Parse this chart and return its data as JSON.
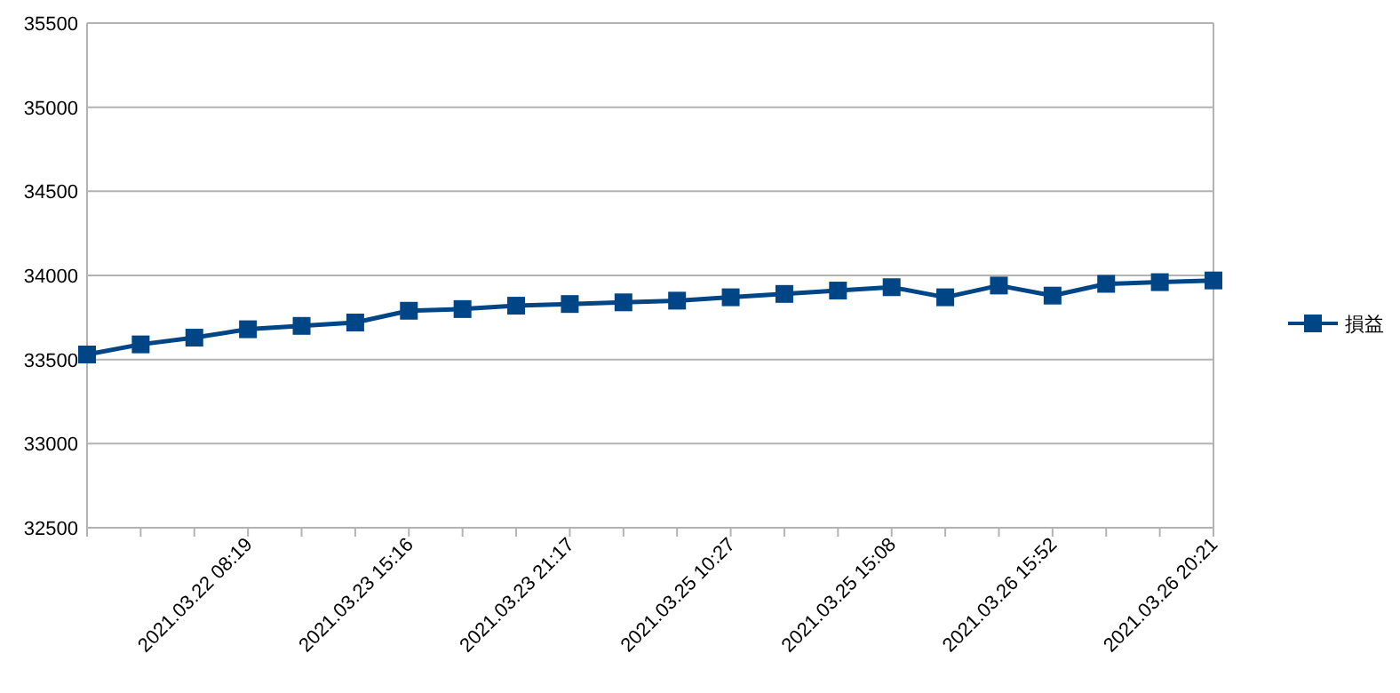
{
  "chart_data": {
    "type": "line",
    "categories": [
      null,
      null,
      null,
      "2021.03.22 08:19",
      null,
      null,
      "2021.03.23 15:16",
      null,
      null,
      "2021.03.23 21:17",
      null,
      null,
      "2021.03.25 10:27",
      null,
      null,
      "2021.03.25 15:08",
      null,
      null,
      "2021.03.26 15:52",
      null,
      null,
      "2021.03.26 20:21"
    ],
    "series": [
      {
        "name": "損益",
        "color": "#004586",
        "values": [
          33530,
          33590,
          33630,
          33680,
          33700,
          33720,
          33790,
          33800,
          33820,
          33830,
          33840,
          33850,
          33870,
          33890,
          33910,
          33930,
          33870,
          33940,
          33880,
          33950,
          33960,
          33970
        ]
      }
    ],
    "ylim": [
      32500,
      35500
    ],
    "yticks": [
      32500,
      33000,
      33500,
      34000,
      34500,
      35000,
      35500
    ],
    "grid": "y",
    "legend": "right",
    "marker": "square",
    "line_style": "solid"
  }
}
